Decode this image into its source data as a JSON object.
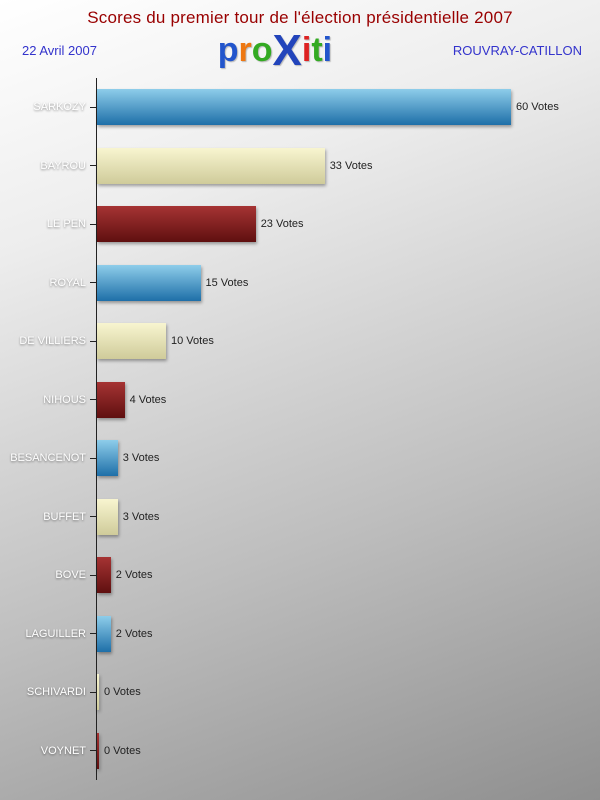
{
  "header": {
    "title": "Scores du premier tour de l'élection présidentielle 2007",
    "date": "22 Avril 2007",
    "location": "ROUVRAY-CATILLON",
    "logo_letters": [
      {
        "ch": "p",
        "color": "#2255cc"
      },
      {
        "ch": "r",
        "color": "#ee7711"
      },
      {
        "ch": "o",
        "color": "#33aa22"
      },
      {
        "ch": "X",
        "color": "#2244bb"
      },
      {
        "ch": "i",
        "color": "#dd2222"
      },
      {
        "ch": "t",
        "color": "#33aa22"
      },
      {
        "ch": "i",
        "color": "#2255cc"
      }
    ]
  },
  "chart_data": {
    "type": "bar",
    "orientation": "horizontal",
    "title": "Scores du premier tour de l'élection présidentielle 2007",
    "subtitle_left": "22 Avril 2007",
    "subtitle_right": "ROUVRAY-CATILLON",
    "categories": [
      "SARKOZY",
      "BAYROU",
      "LE PEN",
      "ROYAL",
      "DE VILLIERS",
      "NIHOUS",
      "BESANCENOT",
      "BUFFET",
      "BOVE",
      "LAGUILLER",
      "SCHIVARDI",
      "VOYNET"
    ],
    "values": [
      60,
      33,
      23,
      15,
      10,
      4,
      3,
      3,
      2,
      2,
      0,
      0
    ],
    "value_suffix": " Votes",
    "xlim": [
      0,
      62
    ],
    "grid": false,
    "legend": "none",
    "bar_palette_cycle": [
      {
        "name": "blue",
        "top": "#8ecdea",
        "bottom": "#1e6fa8"
      },
      {
        "name": "cream",
        "top": "#f8f5d0",
        "bottom": "#cfcb9a"
      },
      {
        "name": "darkred",
        "top": "#a63434",
        "bottom": "#5f1010"
      }
    ],
    "axis_color": "#222222",
    "category_label_color": "#ffffff",
    "value_label_color": "#222222",
    "title_color": "#990000",
    "subtitle_color": "#3333cc"
  }
}
